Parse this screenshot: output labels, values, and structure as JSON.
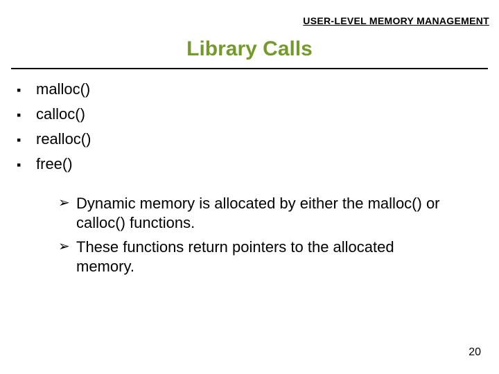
{
  "colors": {
    "background": "#ffffff",
    "text": "#000000",
    "title": "#739a2b",
    "rule": "#000000"
  },
  "typography": {
    "family": "Arial",
    "header_label_fontsize": 14,
    "title_fontsize": 30,
    "list_fontsize": 22,
    "notes_fontsize": 22,
    "pagenum_fontsize": 16
  },
  "header_label": "USER-LEVEL MEMORY MANAGEMENT",
  "title": "Library Calls",
  "bullets": {
    "square": "▪",
    "arrow": "➢"
  },
  "functions": [
    "malloc()",
    "calloc()",
    "realloc()",
    "free()"
  ],
  "notes": [
    "Dynamic memory is allocated by either the malloc() or calloc() functions.",
    "These functions return pointers to the allocated memory."
  ],
  "page_number": "20"
}
